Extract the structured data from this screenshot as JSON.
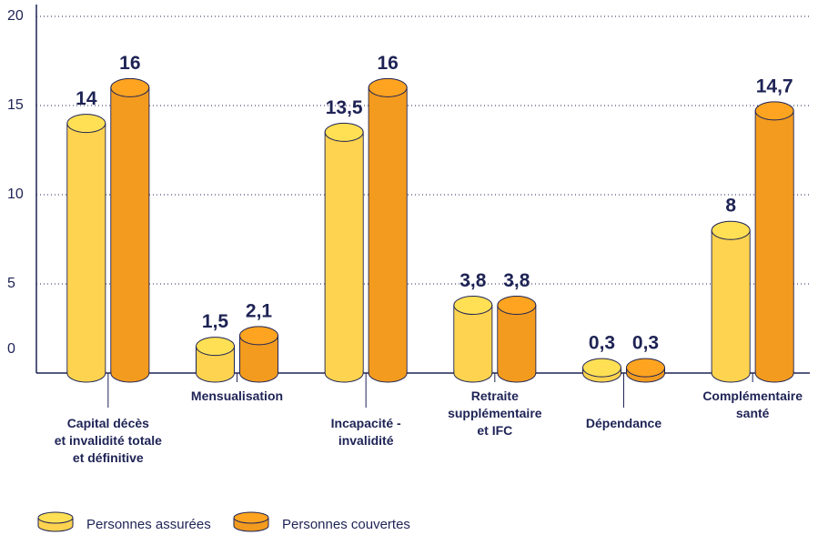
{
  "chart_data": {
    "type": "cylinder-bar",
    "categories": [
      "Capital décès\net invalidité totale\net définitive",
      "Mensualisation",
      "Incapacité -\ninvalidité",
      "Retraite\nsupplémentaire\net IFC",
      "Dépendance",
      "Complémentaire\nsanté"
    ],
    "series": [
      {
        "name": "Personnes assurées",
        "color": "#fdd34f",
        "values": [
          14,
          1.5,
          13.5,
          3.8,
          0.3,
          8
        ],
        "value_labels": [
          "14",
          "1,5",
          "13,5",
          "3,8",
          "0,3",
          "8"
        ]
      },
      {
        "name": "Personnes couvertes",
        "color": "#f39b1e",
        "values": [
          16,
          2.1,
          16,
          3.8,
          0.3,
          14.7
        ],
        "value_labels": [
          "16",
          "2,1",
          "16",
          "3,8",
          "0,3",
          "14,7"
        ]
      }
    ],
    "ylim": [
      0,
      20
    ],
    "yticks": [
      0,
      5,
      10,
      15,
      20
    ],
    "grid": true
  }
}
